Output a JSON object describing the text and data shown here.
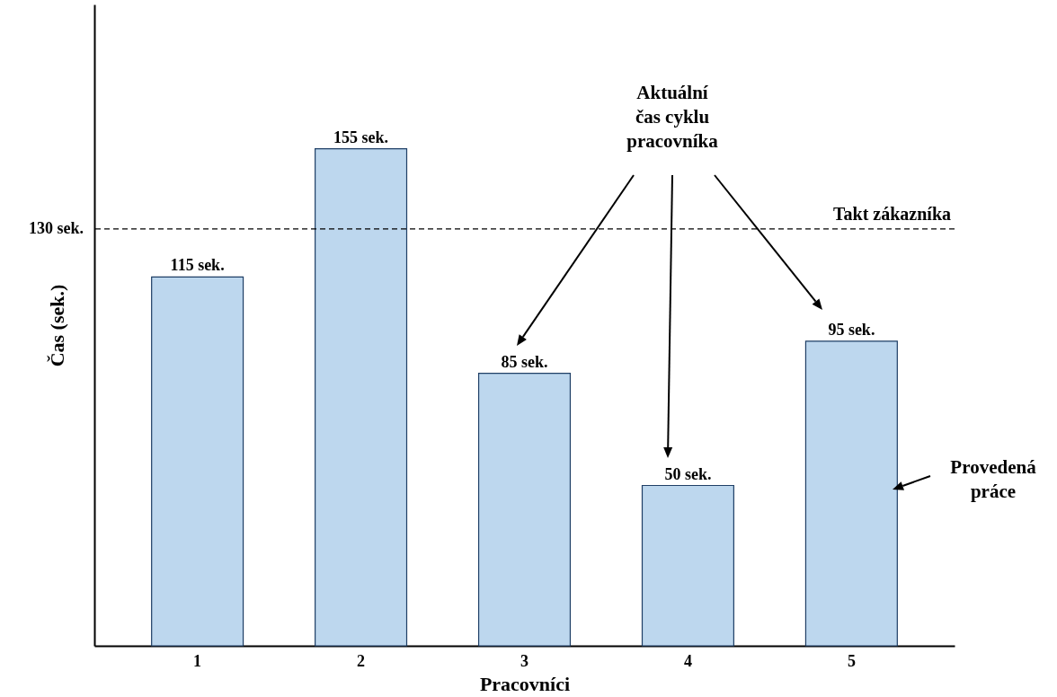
{
  "chart_data": {
    "type": "bar",
    "xlabel": "Pracovníci",
    "ylabel": "Čas (sek.)",
    "categories": [
      "1",
      "2",
      "3",
      "4",
      "5"
    ],
    "values": [
      115,
      155,
      85,
      50,
      95
    ],
    "value_labels": [
      "115 sek.",
      "155 sek.",
      "85 sek.",
      "50 sek.",
      "95 sek."
    ],
    "color": "#bdd7ee",
    "ylim": [
      0,
      200
    ],
    "tick_labels": "x",
    "grid": false,
    "ref_lines": [
      {
        "axis": "y",
        "value": 130,
        "label": "130 sek.",
        "line_style": "dashed"
      }
    ],
    "annotations": [
      {
        "text": "Takt zákazníka",
        "y": 130
      },
      "Aktuální\nčas cyklu\npracovníka",
      "Provedená\npráce"
    ]
  }
}
